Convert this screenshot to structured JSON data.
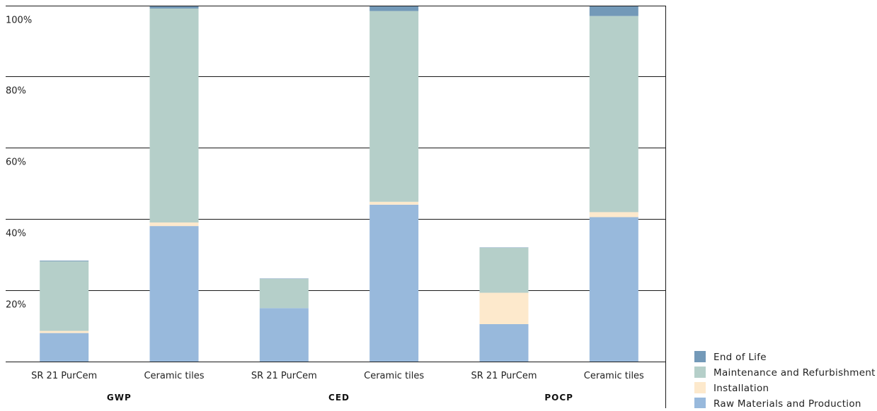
{
  "chart_data": {
    "type": "bar",
    "stacked": true,
    "groups": [
      "GWP",
      "CED",
      "POCP"
    ],
    "categories": [
      "SR 21 PurCem",
      "Ceramic tiles",
      "SR 21 PurCem",
      "Ceramic tiles",
      "SR 21 PurCem",
      "Ceramic tiles"
    ],
    "category_group": [
      0,
      0,
      1,
      1,
      2,
      2
    ],
    "y_ticks": [
      {
        "value": 20,
        "label": "20%"
      },
      {
        "value": 40,
        "label": "40%"
      },
      {
        "value": 60,
        "label": "60%"
      },
      {
        "value": 80,
        "label": "80%"
      },
      {
        "value": 100,
        "label": "100%"
      }
    ],
    "ylim": [
      0,
      100
    ],
    "grid": true,
    "legend_position": "bottom-right",
    "series": [
      {
        "name": "Raw Materials and Production",
        "color": "#98b9dc",
        "values": [
          8,
          38,
          15,
          44,
          10.5,
          40.5
        ]
      },
      {
        "name": "Installation",
        "color": "#fde9cc",
        "values": [
          0.6,
          1,
          0,
          0.8,
          8.8,
          1.4
        ]
      },
      {
        "name": "Maintenance and Refurbishment",
        "color": "#b5cfc9",
        "values": [
          19.5,
          60,
          8.2,
          53.5,
          12.6,
          55
        ]
      },
      {
        "name": "End of Life",
        "color": "#7399b8",
        "values": [
          0.2,
          1.8,
          0.1,
          1.8,
          0.1,
          3.3
        ]
      }
    ],
    "legend_order": [
      3,
      2,
      1,
      0
    ]
  }
}
